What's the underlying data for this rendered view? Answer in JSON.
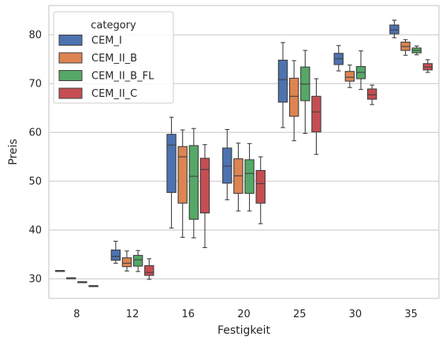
{
  "chart_data": {
    "type": "box",
    "xlabel": "Festigkeit",
    "ylabel": "Preis",
    "categories": [
      "8",
      "12",
      "16",
      "20",
      "25",
      "30",
      "35"
    ],
    "ylim": [
      26,
      86
    ],
    "yticks": [
      30,
      40,
      50,
      60,
      70,
      80
    ],
    "grid": "horizontal",
    "legend": {
      "title": "category",
      "placement": "top-left",
      "entries": [
        "CEM_I",
        "CEM_II_B",
        "CEM_II_B_FL",
        "CEM_II_C"
      ]
    },
    "colors": {
      "CEM_I": "#4c72b0",
      "CEM_II_B": "#dd8452",
      "CEM_II_B_FL": "#55a868",
      "CEM_II_C": "#c44e52"
    },
    "series": [
      {
        "name": "CEM_I",
        "boxes": [
          {
            "min": 31.7,
            "q1": 31.7,
            "median": 31.7,
            "q3": 31.7,
            "max": 31.7
          },
          {
            "min": 33.2,
            "q1": 33.8,
            "median": 34.6,
            "q3": 35.9,
            "max": 37.7
          },
          {
            "min": 40.4,
            "q1": 47.7,
            "median": 57.4,
            "q3": 59.6,
            "max": 63.1
          },
          {
            "min": 46.2,
            "q1": 49.6,
            "median": 53.1,
            "q3": 56.8,
            "max": 60.6
          },
          {
            "min": 61.0,
            "q1": 66.2,
            "median": 70.8,
            "q3": 74.8,
            "max": 78.4
          },
          {
            "min": 72.6,
            "q1": 73.9,
            "median": 75.1,
            "q3": 76.2,
            "max": 77.8
          },
          {
            "min": 79.4,
            "q1": 80.2,
            "median": 81.0,
            "q3": 82.0,
            "max": 83.0
          }
        ]
      },
      {
        "name": "CEM_II_B",
        "boxes": [
          {
            "min": 30.2,
            "q1": 30.2,
            "median": 30.2,
            "q3": 30.2,
            "max": 30.2
          },
          {
            "min": 31.6,
            "q1": 32.5,
            "median": 33.2,
            "q3": 34.3,
            "max": 35.7
          },
          {
            "min": 38.5,
            "q1": 45.5,
            "median": 55.0,
            "q3": 57.1,
            "max": 60.5
          },
          {
            "min": 43.9,
            "q1": 47.5,
            "median": 51.1,
            "q3": 54.6,
            "max": 57.8
          },
          {
            "min": 58.3,
            "q1": 63.3,
            "median": 67.4,
            "q3": 71.1,
            "max": 74.7
          },
          {
            "min": 69.2,
            "q1": 70.5,
            "median": 71.3,
            "q3": 72.5,
            "max": 73.8
          },
          {
            "min": 75.8,
            "q1": 76.8,
            "median": 77.6,
            "q3": 78.5,
            "max": 79.0
          }
        ]
      },
      {
        "name": "CEM_II_B_FL",
        "boxes": [
          {
            "min": 29.4,
            "q1": 29.4,
            "median": 29.4,
            "q3": 29.4,
            "max": 29.4
          },
          {
            "min": 31.5,
            "q1": 32.6,
            "median": 33.9,
            "q3": 34.8,
            "max": 35.8
          },
          {
            "min": 38.4,
            "q1": 42.2,
            "median": 51.0,
            "q3": 57.3,
            "max": 60.8
          },
          {
            "min": 43.9,
            "q1": 47.5,
            "median": 51.6,
            "q3": 54.4,
            "max": 57.7
          },
          {
            "min": 59.8,
            "q1": 66.5,
            "median": 69.9,
            "q3": 73.4,
            "max": 76.8
          },
          {
            "min": 68.8,
            "q1": 71.0,
            "median": 72.3,
            "q3": 73.5,
            "max": 76.7
          },
          {
            "min": 75.9,
            "q1": 76.3,
            "median": 76.8,
            "q3": 77.3,
            "max": 77.7
          }
        ]
      },
      {
        "name": "CEM_II_C",
        "boxes": [
          {
            "min": 28.6,
            "q1": 28.6,
            "median": 28.6,
            "q3": 28.6,
            "max": 28.6
          },
          {
            "min": 29.9,
            "q1": 30.7,
            "median": 31.3,
            "q3": 32.7,
            "max": 34.1
          },
          {
            "min": 36.4,
            "q1": 43.5,
            "median": 52.4,
            "q3": 54.7,
            "max": 57.5
          },
          {
            "min": 41.3,
            "q1": 45.5,
            "median": 49.5,
            "q3": 52.2,
            "max": 55.0
          },
          {
            "min": 55.5,
            "q1": 60.1,
            "median": 64.2,
            "q3": 67.4,
            "max": 71.0
          },
          {
            "min": 65.7,
            "q1": 66.8,
            "median": 67.7,
            "q3": 68.9,
            "max": 69.7
          },
          {
            "min": 72.3,
            "q1": 72.8,
            "median": 73.4,
            "q3": 74.1,
            "max": 74.9
          }
        ]
      }
    ]
  }
}
